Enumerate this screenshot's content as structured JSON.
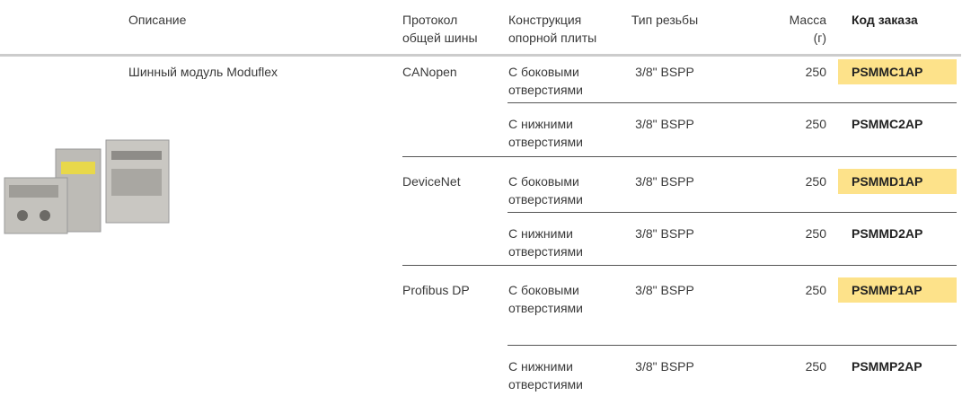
{
  "header": {
    "columns": [
      "Описание",
      "Протокол\nобщей шины",
      "Конструкция\nопорной плиты",
      "Тип резьбы",
      "Масса\n(г)",
      "Код заказа"
    ]
  },
  "table": {
    "description": "Шинный модуль Moduflex",
    "groups": [
      {
        "protocol": "CANopen",
        "rows": [
          {
            "construction": "С боковыми\nотверстиями",
            "thread": "3/8\" BSPP",
            "mass": 250,
            "code": "PSMMC1AP",
            "highlight": true
          },
          {
            "construction": "С нижними\nотверстиями",
            "thread": "3/8\" BSPP",
            "mass": 250,
            "code": "PSMMC2AP",
            "highlight": false
          }
        ]
      },
      {
        "protocol": "DeviceNet",
        "rows": [
          {
            "construction": "С боковыми\nотверстиями",
            "thread": "3/8\" BSPP",
            "mass": 250,
            "code": "PSMMD1AP",
            "highlight": true
          },
          {
            "construction": "С нижними\nотверстиями",
            "thread": "3/8\" BSPP",
            "mass": 250,
            "code": "PSMMD2AP",
            "highlight": false
          }
        ]
      },
      {
        "protocol": "Profibus DP",
        "rows": [
          {
            "construction": "С боковыми\nотверстиями",
            "thread": "3/8\" BSPP",
            "mass": 250,
            "code": "PSMMP1AP",
            "highlight": true
          },
          {
            "construction": "С нижними\nотверстиями",
            "thread": "3/8\" BSPP",
            "mass": 250,
            "code": "PSMMP2AP",
            "highlight": false
          }
        ]
      }
    ]
  }
}
